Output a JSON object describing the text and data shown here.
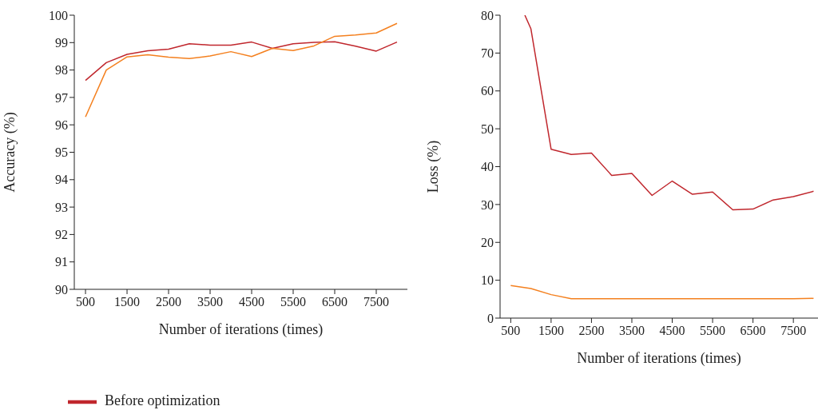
{
  "chart_data": [
    {
      "type": "line",
      "xlabel": "Number of iterations (times)",
      "ylabel": "Accuracy (%)",
      "x": [
        500,
        1000,
        1500,
        2000,
        2500,
        3000,
        3500,
        4000,
        4500,
        5000,
        5500,
        6000,
        6500,
        7000,
        7500,
        8000
      ],
      "xlim": [
        230,
        8250
      ],
      "xticks": [
        500,
        1500,
        2500,
        3500,
        4500,
        5500,
        6500,
        7500
      ],
      "ylim": [
        90,
        100
      ],
      "yticks": [
        90,
        91,
        92,
        93,
        94,
        95,
        96,
        97,
        98,
        99,
        100
      ],
      "grid": false,
      "legend": "bottom left",
      "marker": "none",
      "line_style": "solid",
      "series": [
        {
          "name": "Before optimization",
          "color": "#c0272d",
          "values": [
            97.62,
            98.27,
            98.57,
            98.7,
            98.76,
            98.96,
            98.91,
            98.91,
            99.02,
            98.79,
            98.96,
            99.01,
            99.03,
            98.87,
            98.69,
            99.02
          ]
        },
        {
          "color": "#f4801f",
          "values": [
            96.29,
            98.0,
            98.48,
            98.56,
            98.47,
            98.42,
            98.51,
            98.67,
            98.49,
            98.79,
            98.71,
            98.88,
            99.23,
            99.28,
            99.35,
            99.7
          ]
        }
      ]
    },
    {
      "type": "line",
      "xlabel": "Number of iterations (times)",
      "ylabel": "Loss (%)",
      "xlim": [
        236,
        8110
      ],
      "xticks": [
        500,
        1500,
        2500,
        3500,
        4500,
        5500,
        6500,
        7500
      ],
      "ylim": [
        0,
        80
      ],
      "yticks": [
        0,
        10,
        20,
        30,
        40,
        50,
        60,
        70,
        80
      ],
      "grid": false,
      "legend": false,
      "marker": "none",
      "line_style": "solid",
      "series": [
        {
          "color": "#c0272d",
          "x": [
            850,
            1000,
            1500,
            2000,
            2500,
            3000,
            3500,
            4000,
            4500,
            5000,
            5500,
            6000,
            6500,
            7000,
            7500,
            8000
          ],
          "values": [
            80,
            76.4,
            44.6,
            43.2,
            43.6,
            37.7,
            38.2,
            32.4,
            36.2,
            32.7,
            33.3,
            28.6,
            28.8,
            31.2,
            32.1,
            33.5
          ]
        },
        {
          "color": "#f4801f",
          "x": [
            500,
            1000,
            1500,
            2000,
            2500,
            3000,
            3500,
            4000,
            4500,
            5000,
            5500,
            6000,
            6500,
            7000,
            7500,
            8000
          ],
          "values": [
            8.6,
            7.8,
            6.2,
            5.1,
            5.1,
            5.1,
            5.1,
            5.1,
            5.1,
            5.1,
            5.1,
            5.1,
            5.1,
            5.1,
            5.1,
            5.2
          ]
        }
      ]
    }
  ]
}
